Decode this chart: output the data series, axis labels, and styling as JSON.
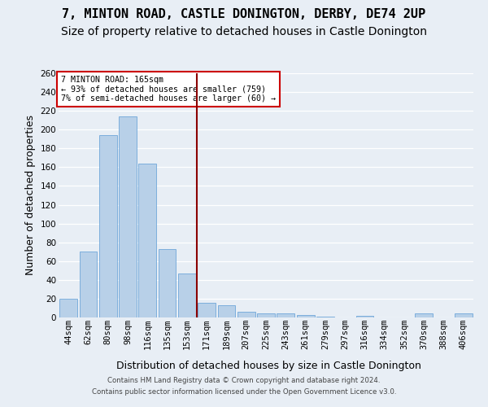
{
  "title": "7, MINTON ROAD, CASTLE DONINGTON, DERBY, DE74 2UP",
  "subtitle": "Size of property relative to detached houses in Castle Donington",
  "xlabel": "Distribution of detached houses by size in Castle Donington",
  "ylabel": "Number of detached properties",
  "bar_labels": [
    "44sqm",
    "62sqm",
    "80sqm",
    "98sqm",
    "116sqm",
    "135sqm",
    "153sqm",
    "171sqm",
    "189sqm",
    "207sqm",
    "225sqm",
    "243sqm",
    "261sqm",
    "279sqm",
    "297sqm",
    "316sqm",
    "334sqm",
    "352sqm",
    "370sqm",
    "388sqm",
    "406sqm"
  ],
  "bar_values": [
    20,
    70,
    194,
    214,
    164,
    73,
    47,
    16,
    13,
    6,
    4,
    4,
    3,
    1,
    0,
    2,
    0,
    0,
    4,
    0,
    4
  ],
  "bar_color": "#b8d0e8",
  "bar_edge_color": "#5b9bd5",
  "vline_x": 6.5,
  "vline_color": "#8b0000",
  "legend_title": "7 MINTON ROAD: 165sqm",
  "legend_line1": "← 93% of detached houses are smaller (759)",
  "legend_line2": "7% of semi-detached houses are larger (60) →",
  "ylim": [
    0,
    260
  ],
  "yticks": [
    0,
    20,
    40,
    60,
    80,
    100,
    120,
    140,
    160,
    180,
    200,
    220,
    240,
    260
  ],
  "footer1": "Contains HM Land Registry data © Crown copyright and database right 2024.",
  "footer2": "Contains public sector information licensed under the Open Government Licence v3.0.",
  "background_color": "#e8eef5",
  "grid_color": "#ffffff",
  "title_fontsize": 11,
  "subtitle_fontsize": 10,
  "tick_fontsize": 7.5,
  "label_fontsize": 9
}
